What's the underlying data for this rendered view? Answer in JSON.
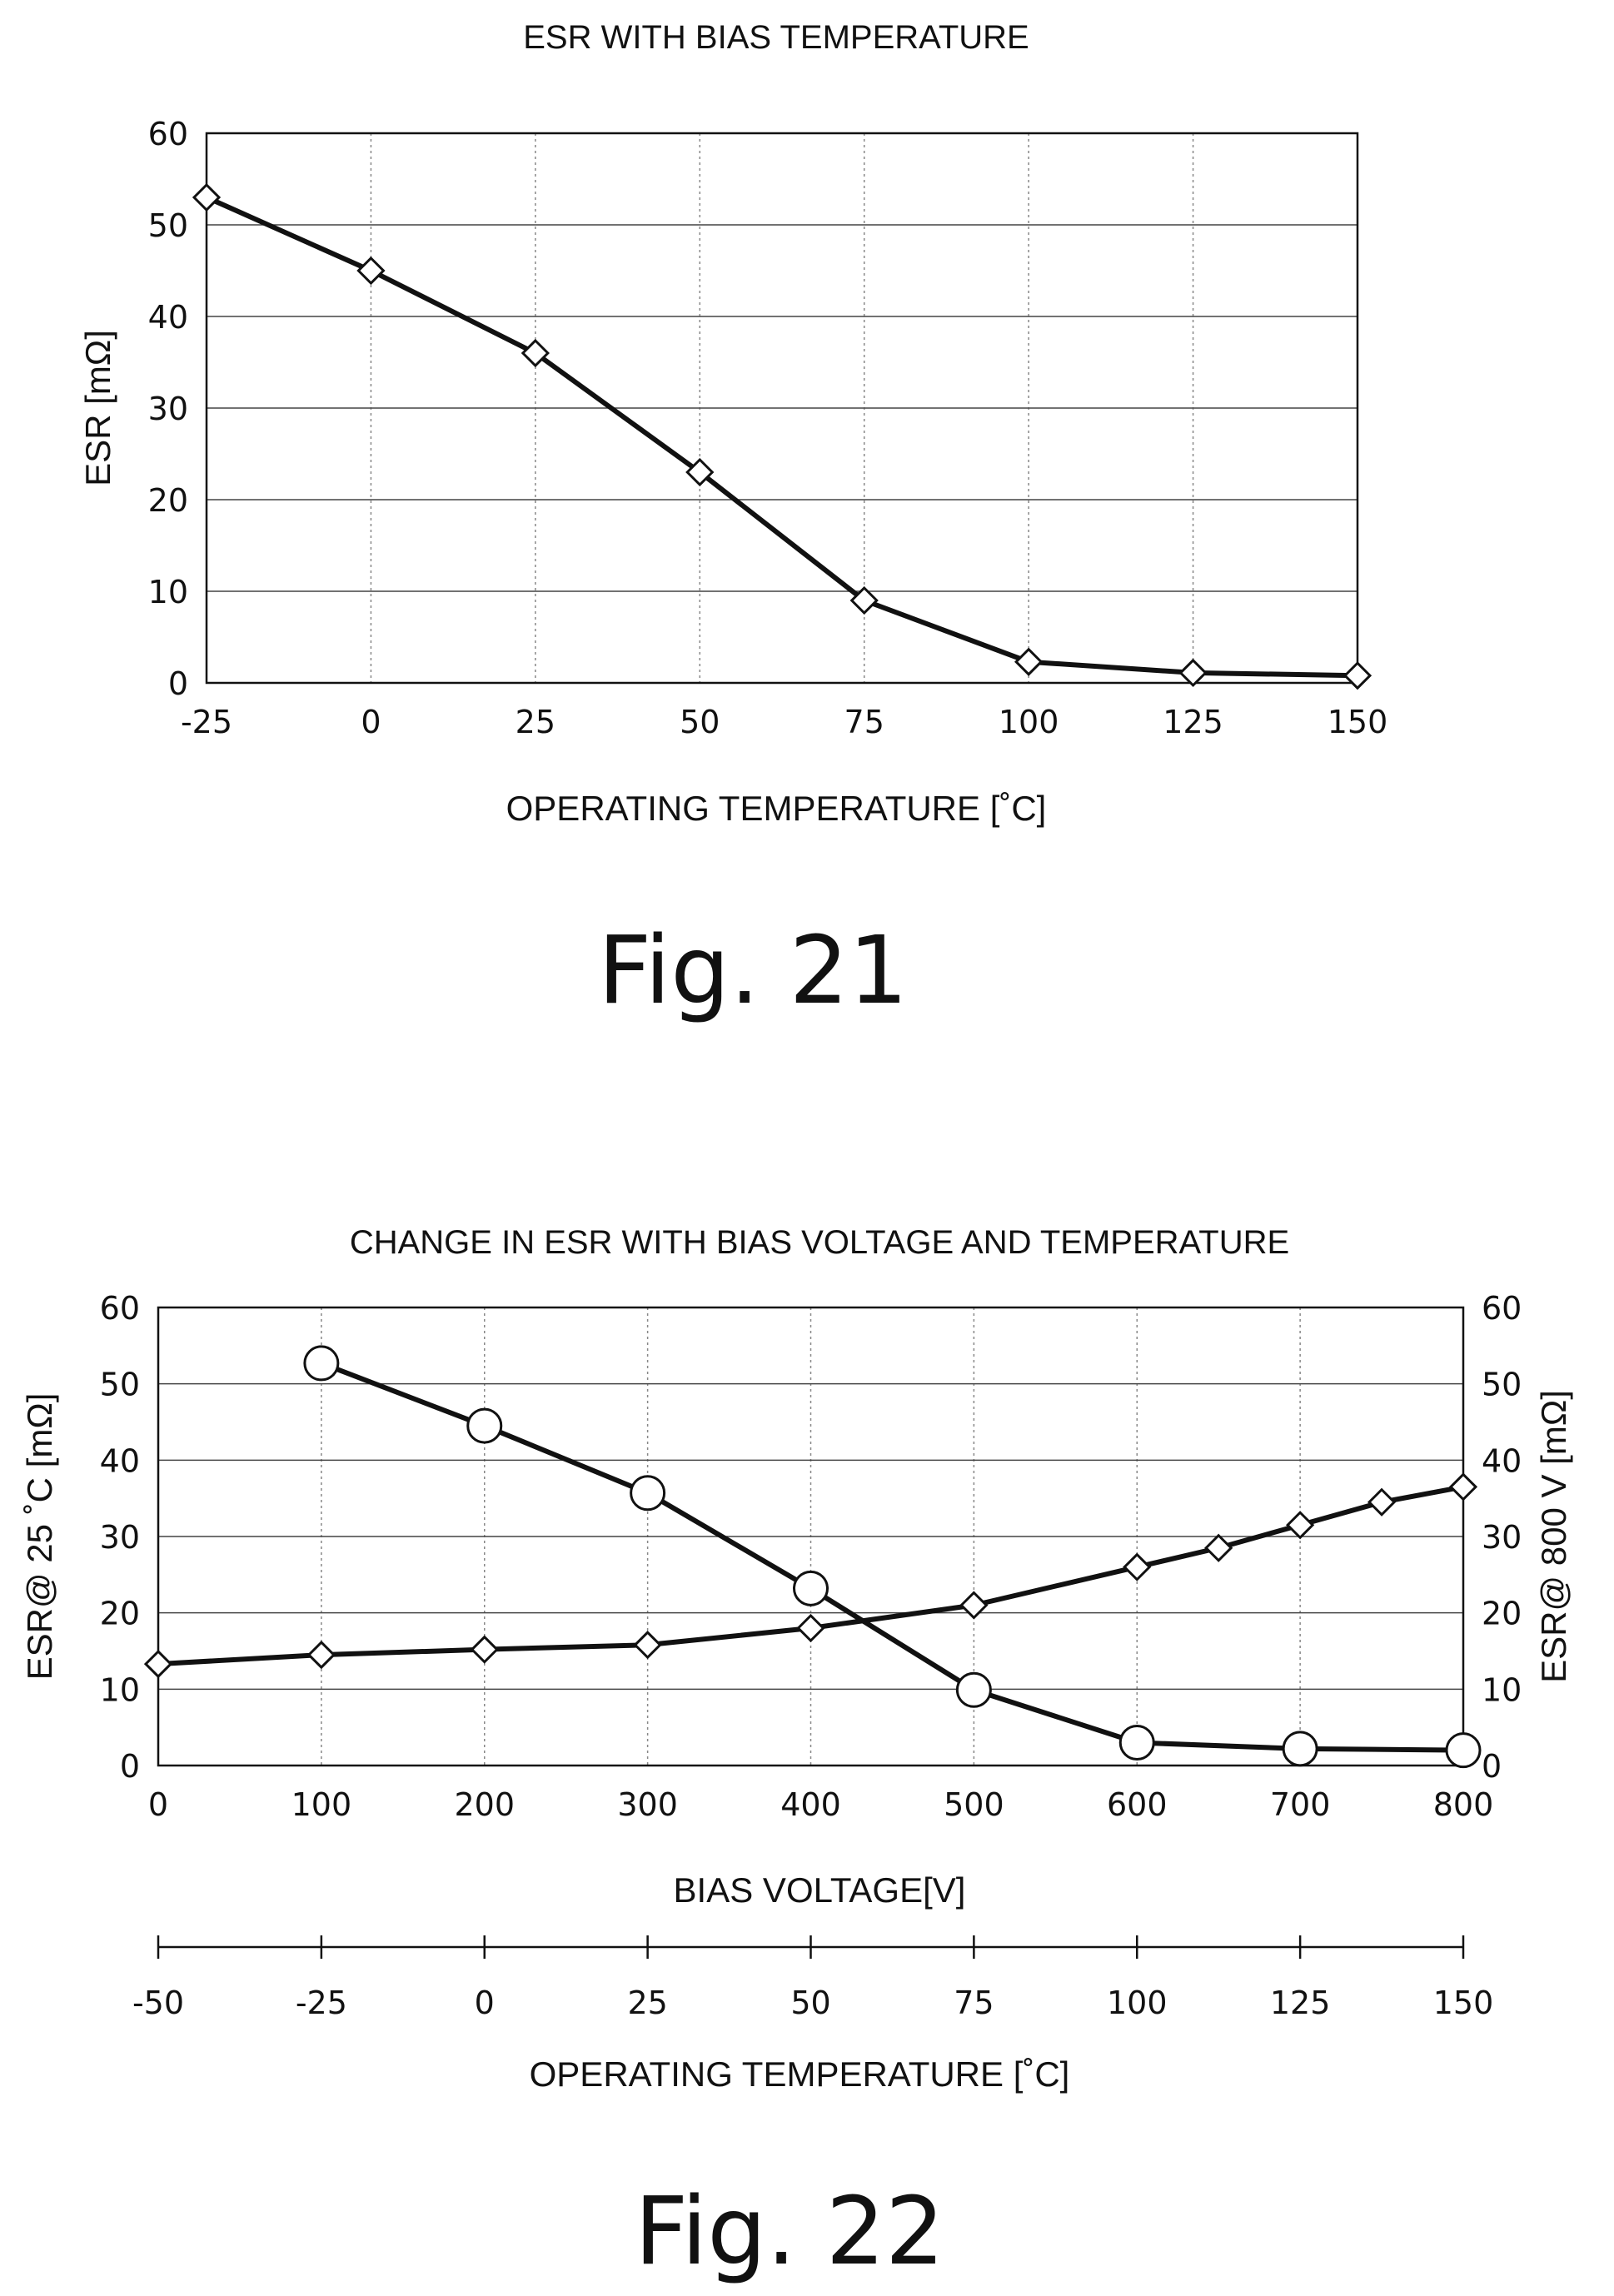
{
  "chart_data": [
    {
      "type": "line",
      "title": "ESR WITH BIAS TEMPERATURE",
      "xlabel": "OPERATING TEMPERATURE [˚C]",
      "ylabel": "ESR [mΩ]",
      "x_ticks": [
        -25,
        0,
        25,
        50,
        75,
        100,
        125,
        150
      ],
      "y_ticks": [
        0,
        10,
        20,
        30,
        40,
        50,
        60
      ],
      "xlim": [
        -25,
        150
      ],
      "ylim": [
        0,
        60
      ],
      "grid": true,
      "series": [
        {
          "marker": "diamond",
          "x": [
            -25,
            0,
            25,
            50,
            75,
            100,
            125,
            150
          ],
          "y": [
            53,
            45,
            36,
            23,
            9,
            2.3,
            1.1,
            0.8
          ]
        }
      ],
      "caption": "Fig. 21"
    },
    {
      "type": "line",
      "title": "CHANGE IN ESR WITH BIAS VOLTAGE AND TEMPERATURE",
      "xlabel": "BIAS VOLTAGE[V]",
      "x2label": "OPERATING TEMPERATURE [˚C]",
      "ylabel_left": "ESR@ 25 ˚C [mΩ]",
      "ylabel_right": "ESR@ 800 V [mΩ]",
      "x_ticks": [
        0,
        100,
        200,
        300,
        400,
        500,
        600,
        700,
        800
      ],
      "x2_ticks": [
        -50,
        -25,
        0,
        25,
        50,
        75,
        100,
        125,
        150
      ],
      "y_ticks": [
        0,
        10,
        20,
        30,
        40,
        50,
        60
      ],
      "y2_ticks": [
        0,
        10,
        20,
        30,
        40,
        50,
        60
      ],
      "xlim": [
        0,
        800
      ],
      "x2lim": [
        -50,
        150
      ],
      "ylim": [
        0,
        60
      ],
      "grid": true,
      "series": [
        {
          "marker": "diamond",
          "x": [
            0,
            100,
            200,
            300,
            400,
            500,
            600,
            650,
            700,
            750,
            800
          ],
          "y": [
            13.3,
            14.5,
            15.2,
            15.8,
            18,
            21,
            26,
            28.5,
            31.5,
            34.5,
            36.5
          ]
        },
        {
          "marker": "circle",
          "x": [
            100,
            200,
            300,
            400,
            500,
            600,
            700,
            800
          ],
          "y": [
            52.7,
            44.5,
            35.7,
            23.2,
            9.9,
            3,
            2.2,
            2
          ]
        }
      ],
      "caption": "Fig. 22"
    }
  ]
}
